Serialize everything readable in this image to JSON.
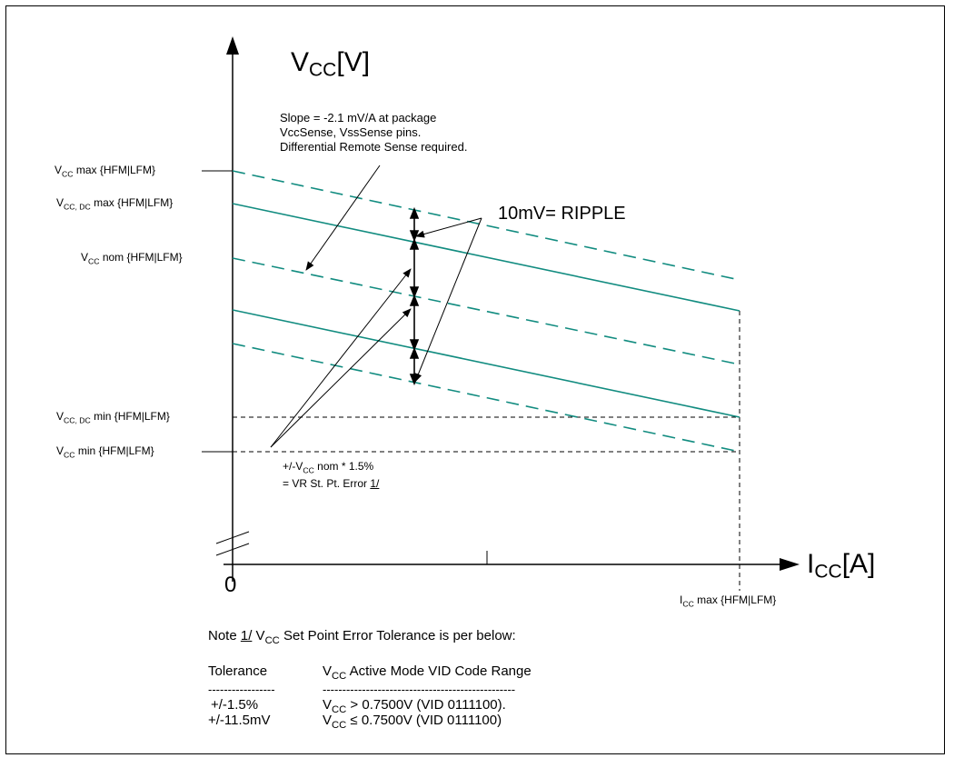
{
  "diagram": {
    "y_axis": {
      "symbol": "V",
      "subscript": "CC",
      "unit": "[V]"
    },
    "x_axis": {
      "symbol": "I",
      "subscript": "CC",
      "unit": "[A]"
    },
    "origin": "0",
    "y_levels": [
      {
        "id": "vcc-max",
        "symbol": "V",
        "subscript": "CC",
        "text": " max {HFM|LFM}"
      },
      {
        "id": "vcc-dc-max",
        "symbol": "V",
        "subscript": "CC, DC",
        "text": " max {HFM|LFM}"
      },
      {
        "id": "vcc-nom",
        "symbol": "V",
        "subscript": "CC",
        "text": " nom {HFM|LFM}"
      },
      {
        "id": "vcc-dc-min",
        "symbol": "V",
        "subscript": "CC, DC",
        "text": " min {HFM|LFM}"
      },
      {
        "id": "vcc-min",
        "symbol": "V",
        "subscript": "CC",
        "text": " min {HFM|LFM}"
      }
    ],
    "x_max_label": {
      "symbol": "I",
      "subscript": "CC",
      "text": " max {HFM|LFM}"
    },
    "slope_note": [
      "Slope = -2.1 mV/A at package",
      "VccSense, VssSense pins.",
      "Differential Remote Sense required."
    ],
    "ripple_label": "10mV= RIPPLE",
    "error_note": {
      "line1_prefix": "+/-V",
      "line1_sub": "CC",
      "line1_suffix": " nom * 1.5%",
      "line2_prefix": "= VR St. Pt. Error ",
      "line2_ref": "1/"
    },
    "colors": {
      "teal": "#128c80",
      "black": "#000000"
    }
  },
  "note": {
    "intro_prefix": "Note ",
    "intro_ref": "1/",
    "intro_mid": "  V",
    "intro_sub": "CC",
    "intro_suffix": " Set Point Error Tolerance is per below:",
    "col1_header": "Tolerance",
    "col2_header_prefix": "V",
    "col2_header_sub": "CC",
    "col2_header_suffix": " Active Mode VID Code Range",
    "col1_rule": "-----------------",
    "col2_rule": "-------------------------------------------------",
    "rows": [
      {
        "tolerance": "+/-1.5%",
        "v": "V",
        "sub": "CC",
        "range": " > 0.7500V (VID 0111100)."
      },
      {
        "tolerance": "+/-11.5mV",
        "v": "V",
        "sub": "CC",
        "range": " ≤ 0.7500V (VID 0111100)"
      }
    ]
  }
}
